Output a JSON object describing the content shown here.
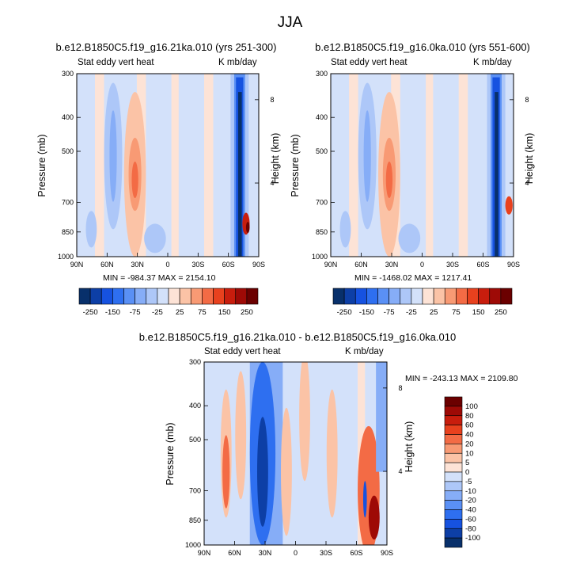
{
  "figure": {
    "title": "JJA",
    "colors": {
      "scale": [
        "#08306b",
        "#0d3fa6",
        "#1652e0",
        "#2e6ff0",
        "#5a90f5",
        "#86adf7",
        "#adc7f8",
        "#d3e1fa",
        "#ffffff",
        "#fde3d6",
        "#fbc3a6",
        "#f89a74",
        "#f36b45",
        "#e8411e",
        "#c81d0d",
        "#9e0a06",
        "#6b0000"
      ]
    }
  },
  "chart_data": [
    {
      "type": "heatmap",
      "title": "b.e12.B1850C5.f19_g16.21ka.010 (yrs 251-300)",
      "left_string": "Stat eddy vert heat",
      "right_string": "K mb/day",
      "ylabel": "Pressure (mb)",
      "y2label": "Height (km)",
      "x_ticks": [
        "90N",
        "60N",
        "30N",
        "0",
        "30S",
        "60S",
        "90S"
      ],
      "y_ticks": [
        "300",
        "400",
        "500",
        "700",
        "850",
        "1000"
      ],
      "y2_ticks": [
        "8",
        "4"
      ],
      "min_max": "MIN = -984.37   MAX = 2154.10",
      "colorbar_labels": [
        "-250",
        "-150",
        "-75",
        "-25",
        "25",
        "75",
        "150",
        "250"
      ],
      "features": [
        {
          "lat": 0.5,
          "p": 700,
          "value": -25
        },
        {
          "lat": 0.62,
          "p": 550,
          "value": 75
        },
        {
          "lat": 0.87,
          "p": 600,
          "value": -250
        },
        {
          "lat": 0.93,
          "p": 850,
          "value": 250
        }
      ]
    },
    {
      "type": "heatmap",
      "title": "b.e12.B1850C5.f19_g16.0ka.010 (yrs 551-600)",
      "left_string": "Stat eddy vert heat",
      "right_string": "K mb/day",
      "ylabel": "Pressure (mb)",
      "y2label": "Height (km)",
      "x_ticks": [
        "90N",
        "60N",
        "30N",
        "0",
        "30S",
        "60S",
        "90S"
      ],
      "y_ticks": [
        "300",
        "400",
        "500",
        "700",
        "850",
        "1000"
      ],
      "y2_ticks": [
        "8",
        "4"
      ],
      "min_max": "MIN = -1468.02   MAX = 1217.41",
      "colorbar_labels": [
        "-250",
        "-150",
        "-75",
        "-25",
        "25",
        "75",
        "150",
        "250"
      ]
    },
    {
      "type": "heatmap",
      "title": "b.e12.B1850C5.f19_g16.21ka.010 - b.e12.B1850C5.f19_g16.0ka.010",
      "left_string": "Stat eddy vert heat",
      "right_string": "K mb/day",
      "ylabel": "Pressure (mb)",
      "y2label": "Height (km)",
      "x_ticks": [
        "90N",
        "60N",
        "30N",
        "0",
        "30S",
        "60S",
        "90S"
      ],
      "y_ticks": [
        "300",
        "400",
        "500",
        "700",
        "850",
        "1000"
      ],
      "y2_ticks": [
        "8",
        "4"
      ],
      "min_max": "MIN = -243.13   MAX = 2109.80",
      "colorbar_labels": [
        "100",
        "80",
        "60",
        "40",
        "20",
        "10",
        "5",
        "0",
        "-5",
        "-10",
        "-20",
        "-40",
        "-60",
        "-80",
        "-100"
      ]
    }
  ]
}
